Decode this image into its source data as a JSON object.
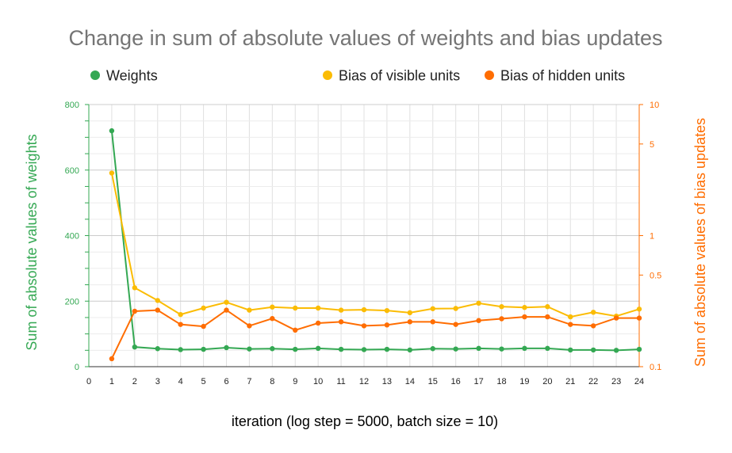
{
  "chart_data": {
    "type": "line",
    "title": "Change in sum of absolute values of weights and bias updates",
    "xlabel": "iteration (log step = 5000, batch size = 10)",
    "ylabel_left": "Sum of absolute values of weights",
    "ylabel_right": "Sum of absolute values of bias updates",
    "x_ticks": [
      0,
      1,
      2,
      3,
      4,
      5,
      6,
      7,
      8,
      9,
      10,
      11,
      12,
      13,
      14,
      15,
      16,
      17,
      18,
      19,
      20,
      21,
      22,
      23,
      24
    ],
    "xlim": [
      0,
      24
    ],
    "left_axis": {
      "ylim": [
        0,
        800
      ],
      "ticks": [
        0,
        200,
        400,
        600,
        800
      ],
      "scale": "linear",
      "color": "#34a853"
    },
    "right_axis": {
      "ylim": [
        0.1,
        10
      ],
      "ticks": [
        0.1,
        0.5,
        1,
        5,
        10
      ],
      "tick_labels": [
        "0.1",
        "0.5",
        "1",
        "5",
        "10"
      ],
      "scale": "log",
      "color": "#ff6d01"
    },
    "grid": true,
    "legend_position": "top",
    "x": [
      1,
      2,
      3,
      4,
      5,
      6,
      7,
      8,
      9,
      10,
      11,
      12,
      13,
      14,
      15,
      16,
      17,
      18,
      19,
      20,
      21,
      22,
      23,
      24
    ],
    "series": [
      {
        "name": "Weights",
        "axis": "left",
        "color": "#34a853",
        "values": [
          720,
          60,
          55,
          52,
          53,
          58,
          54,
          55,
          53,
          56,
          53,
          52,
          53,
          51,
          55,
          54,
          56,
          54,
          56,
          56,
          51,
          51,
          50,
          53
        ]
      },
      {
        "name": "Bias of visible units",
        "axis": "right",
        "color": "#fbbc04",
        "values": [
          3.0,
          0.4,
          0.32,
          0.25,
          0.28,
          0.31,
          0.27,
          0.285,
          0.28,
          0.28,
          0.27,
          0.272,
          0.268,
          0.258,
          0.277,
          0.278,
          0.305,
          0.287,
          0.283,
          0.287,
          0.24,
          0.26,
          0.243,
          0.275
        ]
      },
      {
        "name": "Bias of hidden units",
        "axis": "right",
        "color": "#ff6d01",
        "values": [
          0.115,
          0.265,
          0.27,
          0.21,
          0.203,
          0.27,
          0.205,
          0.233,
          0.19,
          0.215,
          0.22,
          0.205,
          0.208,
          0.22,
          0.22,
          0.21,
          0.225,
          0.232,
          0.24,
          0.24,
          0.21,
          0.205,
          0.235,
          0.235
        ]
      }
    ]
  }
}
